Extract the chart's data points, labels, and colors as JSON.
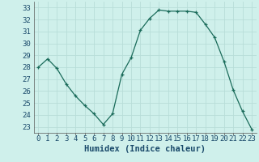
{
  "x": [
    0,
    1,
    2,
    3,
    4,
    5,
    6,
    7,
    8,
    9,
    10,
    11,
    12,
    13,
    14,
    15,
    16,
    17,
    18,
    19,
    20,
    21,
    22,
    23
  ],
  "y": [
    28.0,
    28.7,
    27.9,
    26.6,
    25.6,
    24.8,
    24.1,
    23.2,
    24.1,
    27.4,
    28.8,
    31.1,
    32.1,
    32.8,
    32.7,
    32.7,
    32.7,
    32.6,
    31.6,
    30.5,
    28.5,
    26.1,
    24.3,
    22.8
  ],
  "xlabel": "Humidex (Indice chaleur)",
  "xlim": [
    -0.5,
    23.5
  ],
  "ylim": [
    22.5,
    33.5
  ],
  "yticks": [
    23,
    24,
    25,
    26,
    27,
    28,
    29,
    30,
    31,
    32,
    33
  ],
  "xticks": [
    0,
    1,
    2,
    3,
    4,
    5,
    6,
    7,
    8,
    9,
    10,
    11,
    12,
    13,
    14,
    15,
    16,
    17,
    18,
    19,
    20,
    21,
    22,
    23
  ],
  "line_color": "#1a6b5a",
  "marker": "+",
  "marker_size": 3,
  "bg_color": "#cff0eb",
  "grid_color": "#b8ddd8",
  "xlabel_color": "#1a4a6b",
  "xlabel_fontsize": 7.5,
  "tick_fontsize": 6.5
}
